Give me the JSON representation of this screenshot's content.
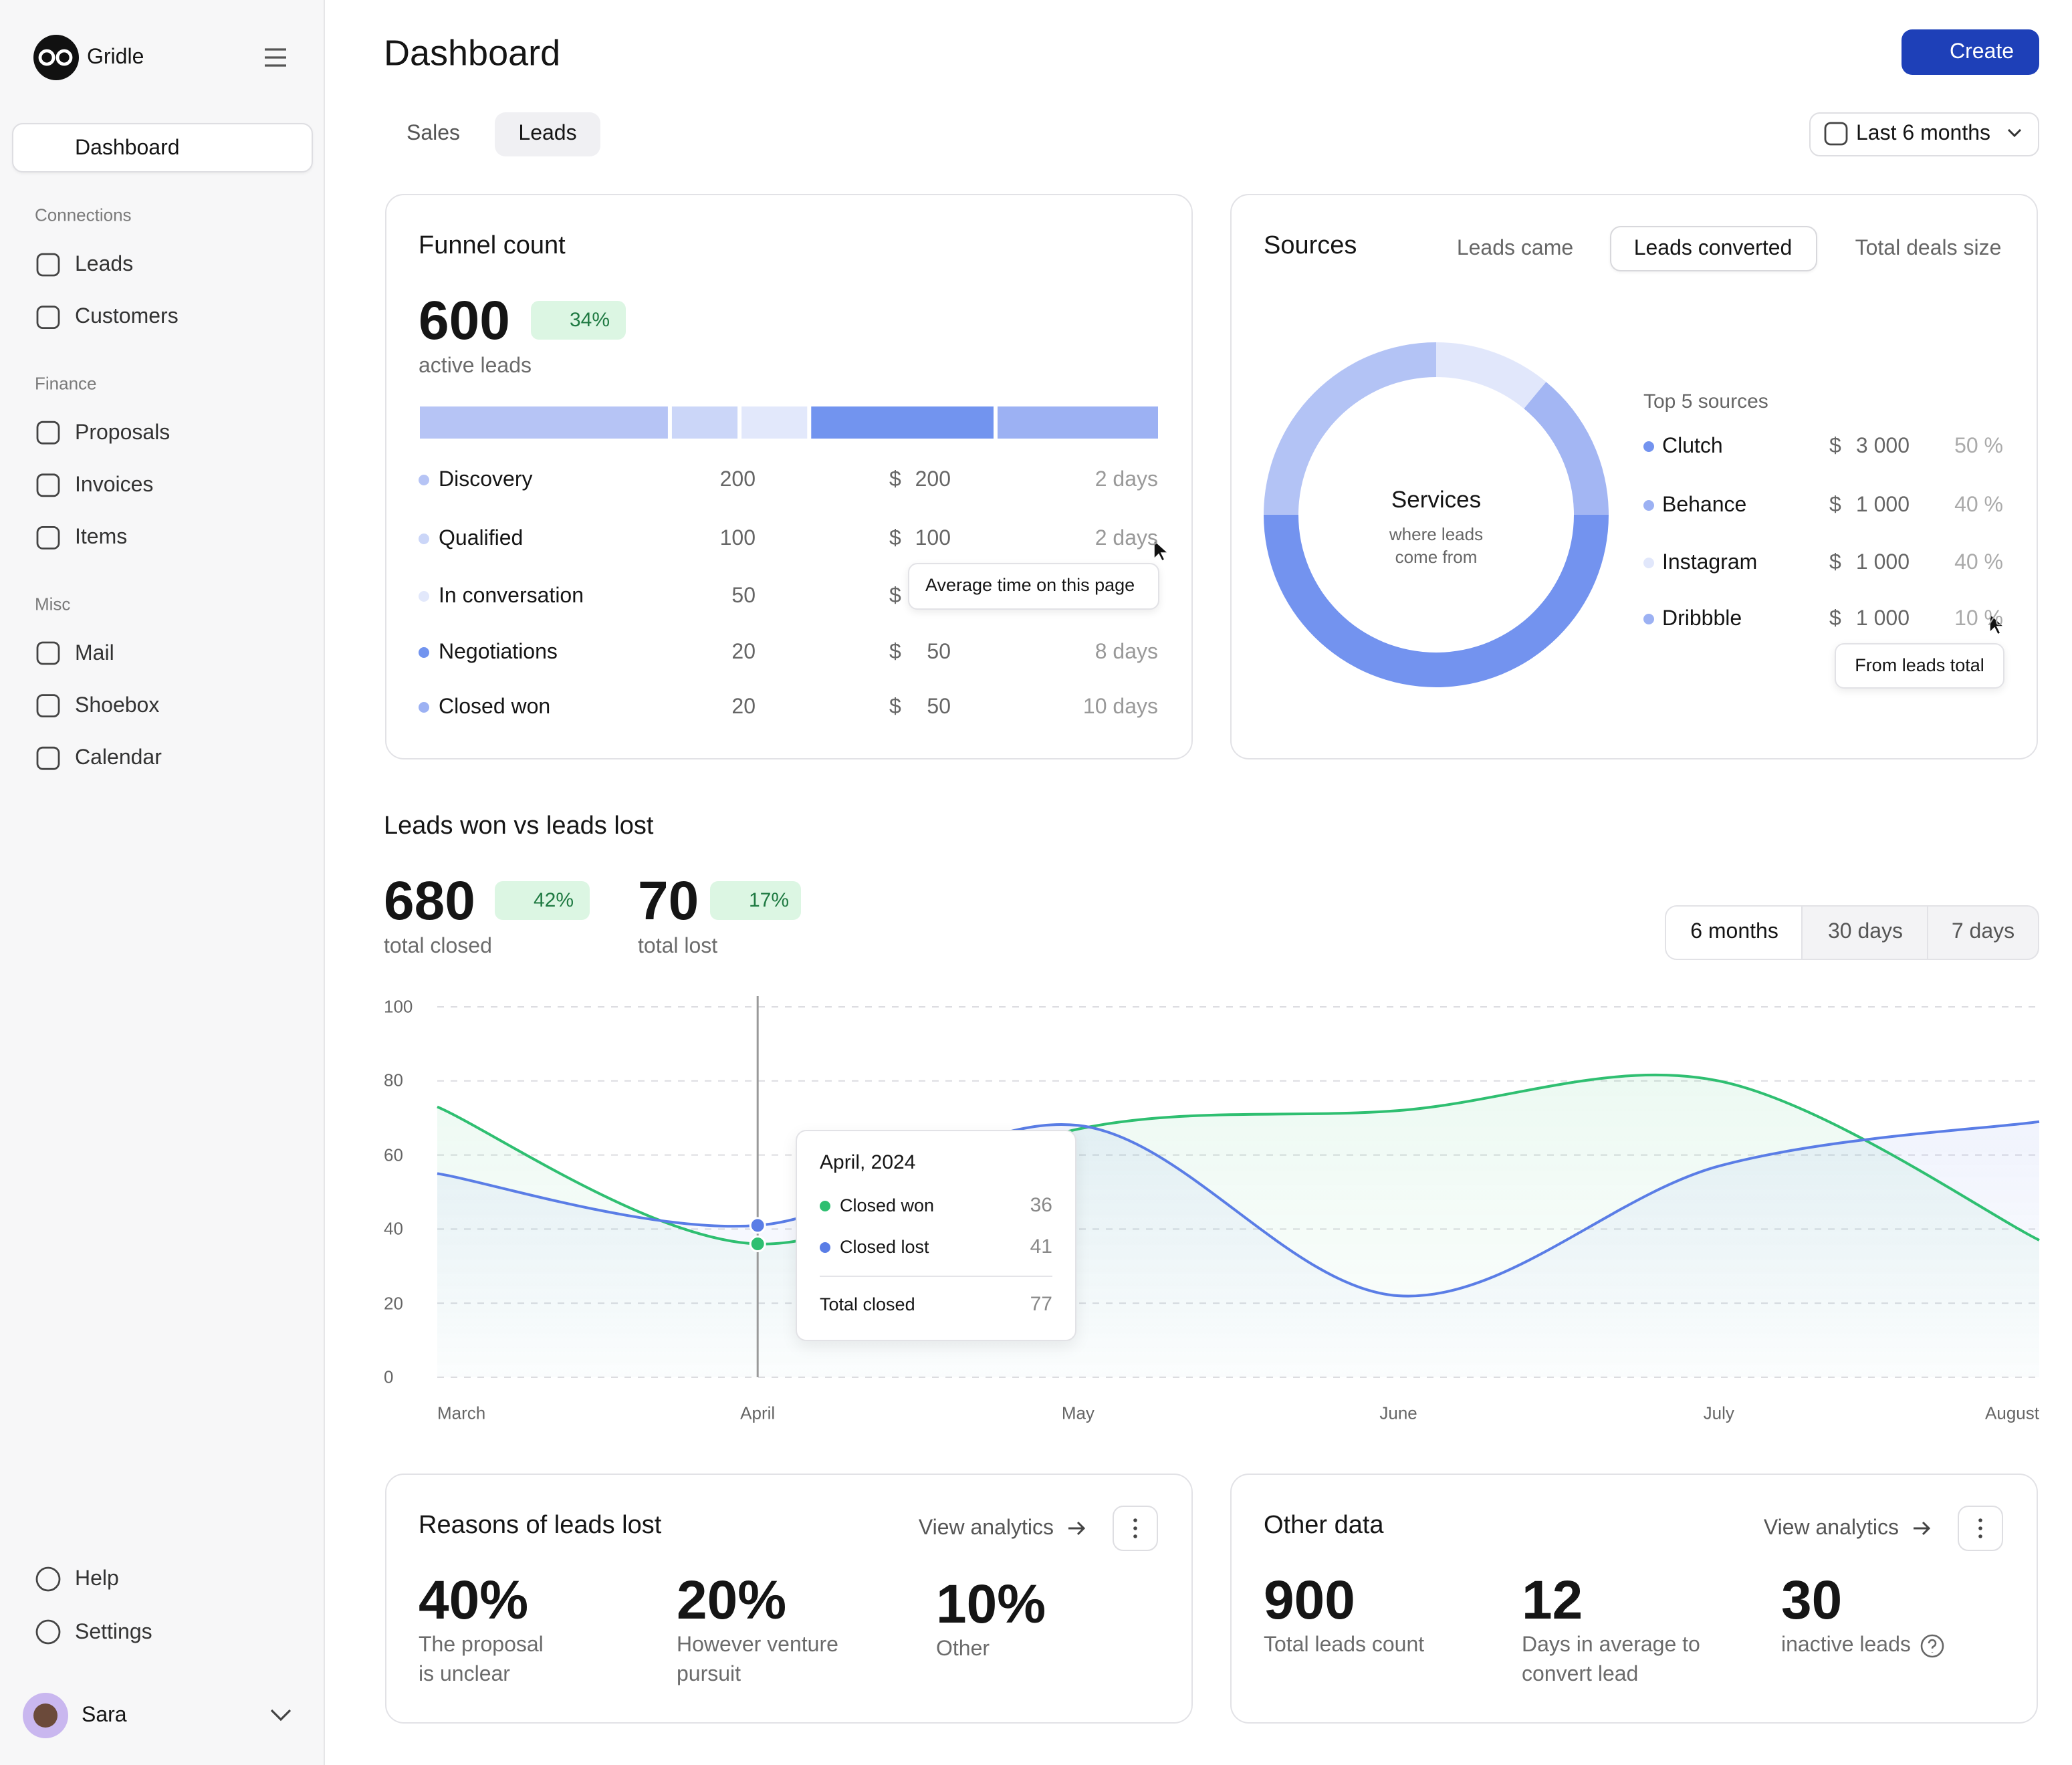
{
  "sidebar": {
    "brand": "Gridle",
    "active": "Dashboard",
    "sections": [
      {
        "title": "Connections",
        "items": [
          "Leads",
          "Customers"
        ]
      },
      {
        "title": "Finance",
        "items": [
          "Proposals",
          "Invoices",
          "Items"
        ]
      },
      {
        "title": "Misc",
        "items": [
          "Mail",
          "Shoebox",
          "Calendar"
        ]
      }
    ],
    "footer": [
      "Help",
      "Settings"
    ],
    "user": "Sara"
  },
  "header": {
    "title": "Dashboard",
    "create": "Create",
    "tabs": [
      "Sales",
      "Leads"
    ],
    "period": "Last 6 months"
  },
  "funnel": {
    "title": "Funnel count",
    "count": 600,
    "change": "34%",
    "caption": "active leads",
    "currency": "$",
    "segments": [
      {
        "share": 34,
        "color": "#b6c4f5"
      },
      {
        "share": 9,
        "color": "#cbd6f8"
      },
      {
        "share": 9,
        "color": "#e2e8fb"
      },
      {
        "share": 25,
        "color": "#7294ef"
      },
      {
        "share": 22,
        "color": "#9cb1f3"
      }
    ],
    "rows": [
      {
        "stage": "Discovery",
        "count": 200,
        "amount": 200,
        "time": "2 days",
        "color": "#b6c4f5"
      },
      {
        "stage": "Qualified",
        "count": 100,
        "amount": 100,
        "time": "2 days",
        "color": "#cbd6f8"
      },
      {
        "stage": "In conversation",
        "count": 50,
        "color": "#e2e8fb"
      },
      {
        "stage": "Negotiations",
        "count": 20,
        "amount": 50,
        "time": "8 days",
        "color": "#7294ef"
      },
      {
        "stage": "Closed won",
        "count": 20,
        "amount": 50,
        "time": "10 days",
        "color": "#9cb1f3"
      }
    ],
    "tooltip": "Average time on this page"
  },
  "sources": {
    "title": "Sources",
    "tabs": [
      "Leads came",
      "Leads converted",
      "Total deals size"
    ],
    "donut": {
      "title": "Services",
      "subtitle": "where leads come from",
      "segments": [
        {
          "value": 11,
          "color": "#e1e7fb"
        },
        {
          "value": 14,
          "color": "#a3b6f3"
        },
        {
          "value": 50,
          "color": "#7393ef"
        },
        {
          "value": 25,
          "color": "#b3c3f5"
        }
      ]
    },
    "list_title": "Top 5 sources",
    "currency": "$",
    "rows": [
      {
        "name": "Clutch",
        "amount": "3 000",
        "share": "50 %",
        "color": "#7393ef"
      },
      {
        "name": "Behance",
        "amount": "1 000",
        "share": "40 %",
        "color": "#9cb1f3"
      },
      {
        "name": "Instagram",
        "amount": "1 000",
        "share": "40 %",
        "color": "#e1e7fb"
      },
      {
        "name": "Dribbble",
        "amount": "1 000",
        "share": "10 %",
        "color": "#9cb1f3"
      }
    ],
    "tooltip": "From leads total"
  },
  "leads": {
    "title": "Leads won vs leads lost",
    "stats": [
      {
        "value": 680,
        "change": "42%",
        "direction": "up",
        "caption": "total closed"
      },
      {
        "value": 70,
        "change": "17%",
        "direction": "down",
        "caption": "total lost"
      }
    ],
    "ranges": [
      "6 months",
      "30 days",
      "7 days"
    ],
    "tooltip": {
      "title": "April, 2024",
      "total_label": "Total closed",
      "total": 77
    }
  },
  "chart_data": {
    "type": "line",
    "categories": [
      "March",
      "April",
      "May",
      "June",
      "July",
      "August"
    ],
    "series": [
      {
        "name": "Closed won",
        "color": "#2fbf71",
        "values": [
          73,
          36,
          67,
          72,
          80,
          37
        ]
      },
      {
        "name": "Closed lost",
        "color": "#5a7de6",
        "values": [
          55,
          41,
          68,
          22,
          57,
          69
        ]
      }
    ],
    "ylim": [
      0,
      100
    ],
    "yticks": [
      0,
      20,
      40,
      60,
      80,
      100
    ],
    "grid": true
  },
  "reasons": {
    "title": "Reasons of leads lost",
    "link": "View analytics",
    "stats": [
      {
        "value": "40%",
        "caption": "The proposal is unclear"
      },
      {
        "value": "20%",
        "caption": "However venture pursuit"
      },
      {
        "value": "10%",
        "caption": "Other"
      }
    ]
  },
  "other": {
    "title": "Other data",
    "link": "View analytics",
    "stats": [
      {
        "value": "900",
        "caption": "Total leads count"
      },
      {
        "value": "12",
        "caption": "Days in average to convert lead"
      },
      {
        "value": "30",
        "caption": "inactive leads"
      }
    ]
  }
}
